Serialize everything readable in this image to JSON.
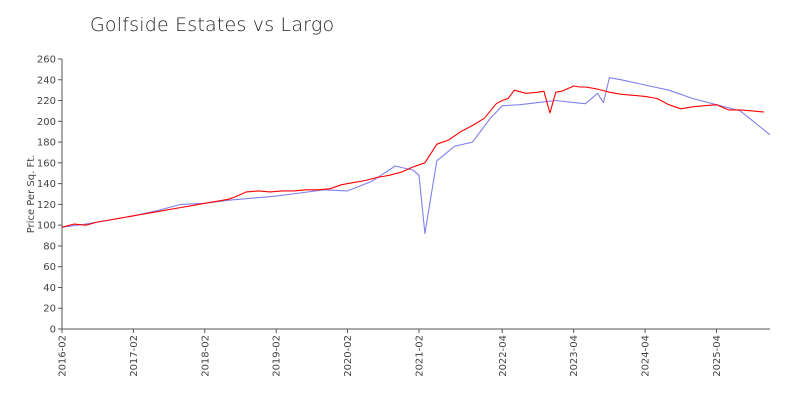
{
  "chart_data": {
    "type": "line",
    "title": "Golfside Estates vs Largo",
    "xlabel": "",
    "ylabel": "Price Per Sq. Ft.",
    "ylim": [
      0,
      260
    ],
    "yticks": [
      "0",
      "20",
      "40",
      "60",
      "80",
      "100",
      "120",
      "140",
      "160",
      "180",
      "200",
      "220",
      "240",
      "260"
    ],
    "xlim": [
      "2016-02",
      "2026-01"
    ],
    "xticks": [
      "2016-02",
      "2017-02",
      "2018-02",
      "2019-02",
      "2020-02",
      "2021-02",
      "2022-04",
      "2023-04",
      "2024-04",
      "2025-04"
    ],
    "grid": false,
    "legend": "none",
    "series": [
      {
        "color": "#ff0000",
        "x": [
          "2016-02",
          "2016-04",
          "2016-06",
          "2016-08",
          "2016-10",
          "2016-12",
          "2017-02",
          "2017-04",
          "2017-06",
          "2017-08",
          "2017-10",
          "2017-12",
          "2018-02",
          "2018-04",
          "2018-06",
          "2018-07",
          "2018-09",
          "2018-11",
          "2019-01",
          "2019-03",
          "2019-05",
          "2019-07",
          "2019-09",
          "2019-11",
          "2020-01",
          "2020-03",
          "2020-05",
          "2020-07",
          "2020-09",
          "2020-11",
          "2021-01",
          "2021-03",
          "2021-05",
          "2021-07",
          "2021-09",
          "2021-11",
          "2022-01",
          "2022-03",
          "2022-04",
          "2022-05",
          "2022-06",
          "2022-08",
          "2022-10",
          "2022-11",
          "2022-12",
          "2023-01",
          "2023-02",
          "2023-04",
          "2023-05",
          "2023-06",
          "2023-08",
          "2023-10",
          "2023-12",
          "2024-02",
          "2024-04",
          "2024-06",
          "2024-08",
          "2024-10",
          "2024-12",
          "2025-02",
          "2025-04",
          "2025-06",
          "2025-08",
          "2025-10",
          "2025-12"
        ],
        "values": [
          98,
          101,
          100,
          103,
          105,
          107,
          109,
          111,
          113,
          115,
          117,
          119,
          121,
          123,
          125,
          127,
          132,
          133,
          132,
          133,
          133,
          134,
          134,
          135,
          139,
          141,
          143,
          146,
          148,
          151,
          156,
          160,
          178,
          182,
          190,
          196,
          203,
          217,
          220,
          222,
          230,
          227,
          228,
          229,
          208,
          228,
          229,
          234,
          233,
          233,
          231,
          228,
          226,
          225,
          224,
          222,
          216,
          212,
          214,
          215,
          216,
          211,
          211,
          210,
          209
        ]
      },
      {
        "color": "#8080ee",
        "x": [
          "2016-02",
          "2016-06",
          "2016-10",
          "2017-02",
          "2017-06",
          "2017-10",
          "2018-02",
          "2018-06",
          "2018-10",
          "2019-02",
          "2019-06",
          "2019-10",
          "2020-02",
          "2020-06",
          "2020-10",
          "2021-01",
          "2021-02",
          "2021-03",
          "2021-05",
          "2021-08",
          "2021-11",
          "2022-02",
          "2022-04",
          "2022-07",
          "2022-10",
          "2023-01",
          "2023-04",
          "2023-06",
          "2023-08",
          "2023-09",
          "2023-10",
          "2023-12",
          "2024-04",
          "2024-08",
          "2024-12",
          "2025-04",
          "2025-08",
          "2026-01"
        ],
        "values": [
          98,
          101,
          105,
          109,
          114,
          120,
          121,
          124,
          126,
          128,
          131,
          134,
          133,
          142,
          157,
          153,
          148,
          92,
          162,
          176,
          180,
          203,
          215,
          216,
          218,
          220,
          218,
          217,
          227,
          218,
          242,
          240,
          235,
          230,
          222,
          216,
          210,
          187
        ]
      }
    ]
  }
}
